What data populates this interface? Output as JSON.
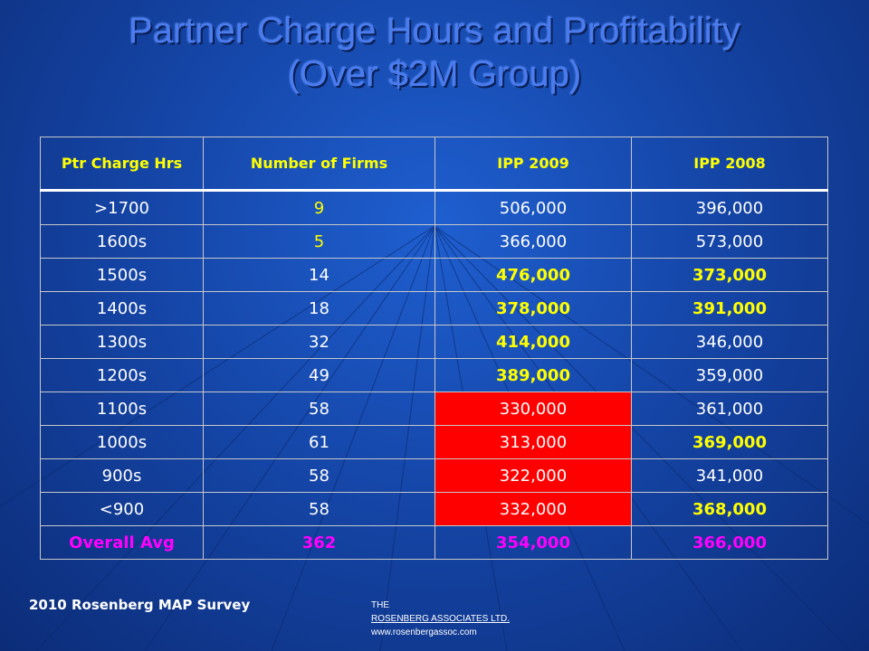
{
  "slide": {
    "title_line1": "Partner Charge Hours and Profitability",
    "title_line2": "(Over $2M Group)"
  },
  "table": {
    "headers": [
      "Ptr Charge Hrs",
      "Number of Firms",
      "IPP 2009",
      "IPP 2008"
    ],
    "rows": [
      [
        ">1700",
        "9",
        "506,000",
        "396,000"
      ],
      [
        "1600s",
        "5",
        "366,000",
        "573,000"
      ],
      [
        "1500s",
        "14",
        "476,000",
        "373,000"
      ],
      [
        "1400s",
        "18",
        "378,000",
        "391,000"
      ],
      [
        "1300s",
        "32",
        "414,000",
        "346,000"
      ],
      [
        "1200s",
        "49",
        "389,000",
        "359,000"
      ],
      [
        "1100s",
        "58",
        "330,000",
        "361,000"
      ],
      [
        "1000s",
        "61",
        "313,000",
        "369,000"
      ],
      [
        "900s",
        "58",
        "322,000",
        "341,000"
      ],
      [
        "<900",
        "58",
        "332,000",
        "368,000"
      ]
    ],
    "average": [
      "Overall Avg",
      "362",
      "354,000",
      "366,000"
    ]
  },
  "footer": {
    "survey": "2010 Rosenberg MAP Survey",
    "logo_line1": "THE",
    "logo_line2": "ROSENBERG ASSOCIATES LTD.",
    "logo_line3": "www.rosenbergassoc.com"
  },
  "colors": {
    "background": "#1546a8",
    "highlight_yellow": "#ffff00",
    "highlight_red": "#ff0000",
    "average_magenta": "#ff00ff"
  }
}
